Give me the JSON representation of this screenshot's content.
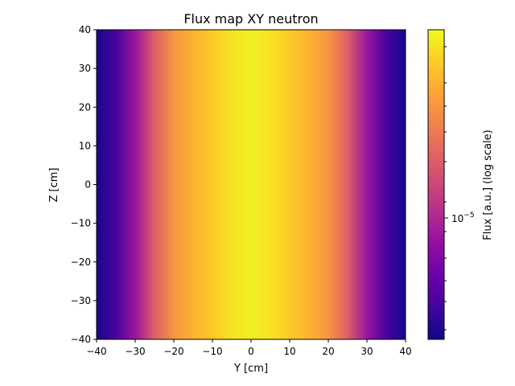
{
  "chart_data": {
    "type": "heatmap",
    "title": "Flux map XY neutron",
    "xlabel": "Y [cm]",
    "ylabel": "Z [cm]",
    "xlim": [
      -40,
      40
    ],
    "ylim": [
      -40,
      40
    ],
    "x_ticks": [
      -40,
      -30,
      -20,
      -10,
      0,
      10,
      20,
      30,
      40
    ],
    "y_ticks": [
      -40,
      -30,
      -20,
      -10,
      0,
      10,
      20,
      30,
      40
    ],
    "x_tick_labels": [
      "−40",
      "−30",
      "−20",
      "−10",
      "0",
      "10",
      "20",
      "30",
      "40"
    ],
    "y_tick_labels": [
      "−40",
      "−30",
      "−20",
      "−10",
      "0",
      "10",
      "20",
      "30",
      "40"
    ],
    "colormap": "plasma",
    "color_scale": "log",
    "colorbar": {
      "label": "Flux [a.u.] (log scale)",
      "major_tick_label": "10",
      "major_tick_exponent": "−5"
    },
    "profile_along_y": {
      "description_units": "normalized color level (0 = min, 1 = max) vs Y [cm]; uniform along Z",
      "y": [
        -40,
        -35,
        -30,
        -25,
        -20,
        -15,
        -10,
        -5,
        0,
        5,
        10,
        15,
        20,
        25,
        30,
        35,
        40
      ],
      "level": [
        0.02,
        0.12,
        0.33,
        0.58,
        0.75,
        0.83,
        0.89,
        0.95,
        0.98,
        0.95,
        0.89,
        0.83,
        0.75,
        0.58,
        0.33,
        0.12,
        0.02
      ]
    },
    "grid": false
  }
}
